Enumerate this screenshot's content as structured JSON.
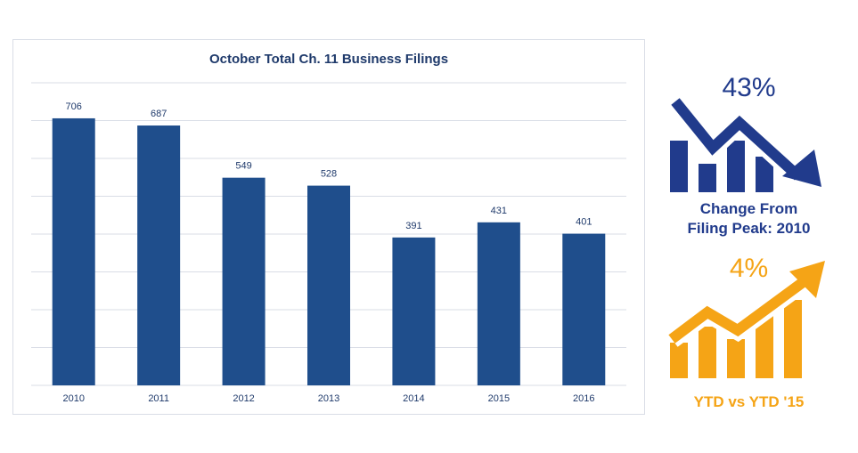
{
  "chart_data": {
    "type": "bar",
    "title": "October Total Ch. 11 Business Filings",
    "categories": [
      "2010",
      "2011",
      "2012",
      "2013",
      "2014",
      "2015",
      "2016"
    ],
    "values": [
      706,
      687,
      549,
      528,
      391,
      431,
      401
    ],
    "ylim": [
      0,
      800
    ],
    "grid": true,
    "data_labels": true,
    "bar_color": "#1f4e8c"
  },
  "kpis": [
    {
      "value": "43%",
      "caption_lines": [
        "Change From",
        "Filing Peak: 2010"
      ],
      "color": "#213b8c",
      "icon": "declining-bar-chart-arrow-icon"
    },
    {
      "value": "4%",
      "caption_lines": [
        "YTD vs YTD '15"
      ],
      "color": "#f5a416",
      "icon": "rising-bar-chart-arrow-icon"
    }
  ]
}
